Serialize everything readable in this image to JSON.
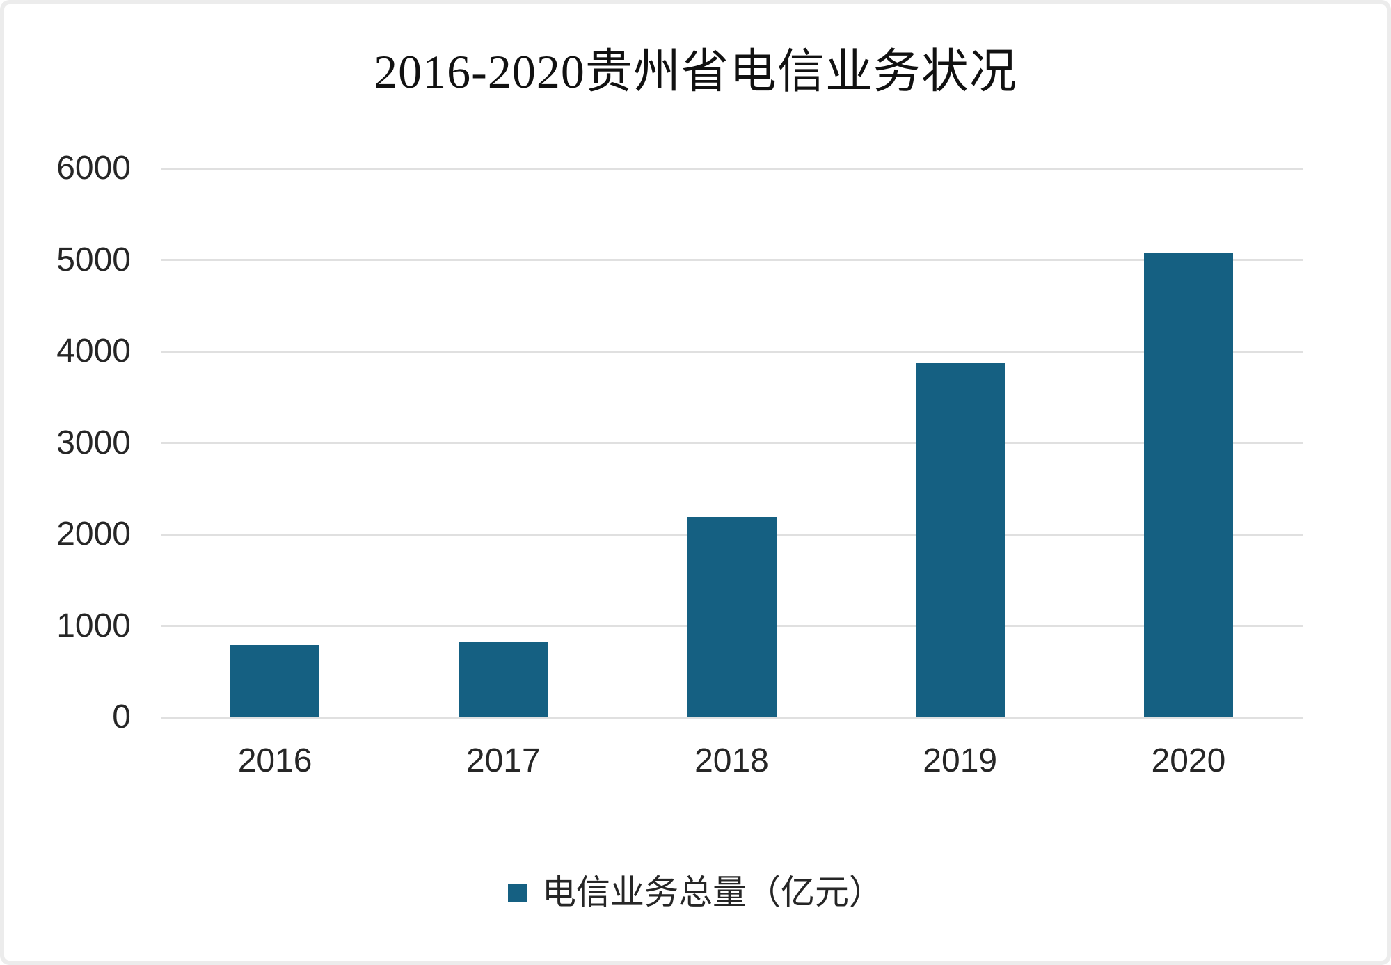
{
  "chart_data": {
    "type": "bar",
    "title": "2016-2020贵州省电信业务状况",
    "categories": [
      "2016",
      "2017",
      "2018",
      "2019",
      "2020"
    ],
    "series": [
      {
        "name": "电信业务总量（亿元）",
        "values": [
          790,
          820,
          2190,
          3870,
          5080
        ],
        "color": "#156082"
      }
    ],
    "xlabel": "",
    "ylabel": "",
    "ylim": [
      0,
      6000
    ],
    "ytick_interval": 1000,
    "yticks": [
      0,
      1000,
      2000,
      3000,
      4000,
      5000,
      6000
    ],
    "grid": true,
    "gridline_color": "#e0e0e0",
    "legend_position": "bottom",
    "legend": [
      "电信业务总量（亿元）"
    ]
  },
  "colors": {
    "bar": "#156082",
    "gridline": "#e0e0e0",
    "axis_text": "#262626",
    "title_text": "#111111",
    "frame_border": "#ececec",
    "background": "#ffffff"
  }
}
